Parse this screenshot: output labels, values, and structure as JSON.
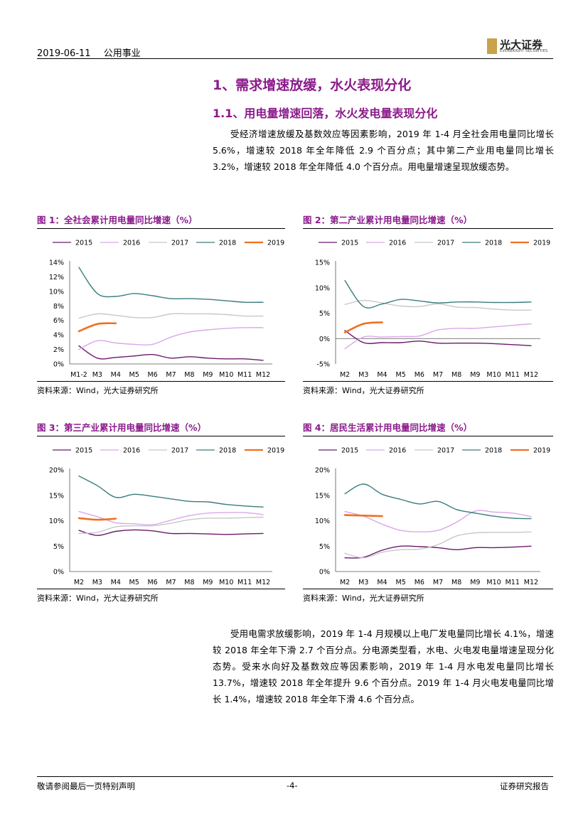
{
  "header": {
    "date": "2019-06-11",
    "sector": "公用事业"
  },
  "logo": {
    "cn": "光大证券",
    "en": "EVERBRIGHT SECURITIES"
  },
  "section": {
    "h1": "1、需求增速放缓，水火表现分化",
    "h2": "1.1、用电量增速回落，水火发电量表现分化"
  },
  "para1": "受经济增速放缓及基数效应等因素影响，2019 年 1-4 月全社会用电量同比增长 5.6%，增速较 2018 年全年降低 2.9 个百分点；其中第二产业用电量同比增长 3.2%，增速较 2018 年全年降低 4.0 个百分点。用电量增速呈现放缓态势。",
  "para2": "受用电需求放缓影响，2019 年 1-4 月规模以上电厂发电量同比增长 4.1%，增速较 2018 年全年下滑 2.7 个百分点。分电源类型看，水电、火电发电量增速呈现分化态势。受来水向好及基数效应等因素影响，2019 年 1-4 月水电发电量同比增长 13.7%，增速较 2018 年全年提升 9.6 个百分点。2019 年 1-4 月火电发电量同比增长 1.4%，增速较 2018 年全年下滑 4.6 个百分点。",
  "source_text": "资料来源：Wind，光大证券研究所",
  "footer": {
    "left": "敬请参阅最后一页特别声明",
    "center": "-4-",
    "right": "证券研究报告"
  },
  "colors": {
    "2015": "#6b1a6b",
    "2016": "#d9a8e8",
    "2017": "#c8c8c8",
    "2018": "#3a7d7d",
    "2019": "#f07020",
    "title": "#8b1a8b"
  },
  "chart_data": [
    {
      "id": "fig1",
      "type": "line",
      "title": "图 1：全社会累计用电量同比增速（%）",
      "categories": [
        "M1-2",
        "M3",
        "M4",
        "M5",
        "M6",
        "M7",
        "M8",
        "M9",
        "M10",
        "M11",
        "M12"
      ],
      "yticks": [
        "0%",
        "2%",
        "4%",
        "6%",
        "8%",
        "10%",
        "12%",
        "14%"
      ],
      "ylim": [
        0,
        14
      ],
      "series": [
        {
          "name": "2015",
          "values": [
            2.5,
            0.8,
            0.9,
            1.1,
            1.3,
            0.8,
            1.0,
            0.8,
            0.7,
            0.7,
            0.5
          ]
        },
        {
          "name": "2016",
          "values": [
            2.0,
            3.2,
            2.9,
            2.7,
            2.7,
            3.7,
            4.4,
            4.7,
            4.9,
            5.0,
            5.0
          ]
        },
        {
          "name": "2017",
          "values": [
            6.3,
            6.9,
            6.7,
            6.4,
            6.4,
            6.9,
            6.9,
            6.9,
            6.8,
            6.6,
            6.6
          ]
        },
        {
          "name": "2018",
          "values": [
            13.3,
            9.7,
            9.3,
            9.7,
            9.4,
            9.0,
            9.0,
            8.9,
            8.7,
            8.5,
            8.5
          ]
        },
        {
          "name": "2019",
          "values": [
            4.5,
            5.5,
            5.6,
            null,
            null,
            null,
            null,
            null,
            null,
            null,
            null
          ]
        }
      ]
    },
    {
      "id": "fig2",
      "type": "line",
      "title": "图 2：第二产业累计用电量同比增速（%）",
      "categories": [
        "M2",
        "M3",
        "M4",
        "M5",
        "M6",
        "M7",
        "M8",
        "M9",
        "M10",
        "M11",
        "M12"
      ],
      "yticks": [
        "-5%",
        "0%",
        "5%",
        "10%",
        "15%"
      ],
      "ylim": [
        -5,
        15
      ],
      "series": [
        {
          "name": "2015",
          "values": [
            1.6,
            -0.8,
            -0.8,
            -0.8,
            -0.5,
            -0.9,
            -0.9,
            -0.9,
            -1.0,
            -1.2,
            -1.4
          ]
        },
        {
          "name": "2016",
          "values": [
            -2.0,
            0.3,
            0.3,
            0.4,
            0.5,
            1.7,
            2.0,
            2.0,
            2.3,
            2.6,
            2.9
          ]
        },
        {
          "name": "2017",
          "values": [
            6.7,
            7.5,
            7.0,
            6.4,
            6.3,
            6.8,
            6.2,
            6.1,
            5.8,
            5.6,
            5.6
          ]
        },
        {
          "name": "2018",
          "values": [
            11.4,
            6.3,
            6.8,
            7.7,
            7.4,
            7.0,
            7.2,
            7.2,
            7.1,
            7.1,
            7.2
          ]
        },
        {
          "name": "2019",
          "values": [
            1.2,
            2.9,
            3.2,
            null,
            null,
            null,
            null,
            null,
            null,
            null,
            null
          ]
        }
      ]
    },
    {
      "id": "fig3",
      "type": "line",
      "title": "图 3：第三产业累计用电量同比增速（%）",
      "categories": [
        "M2",
        "M3",
        "M4",
        "M5",
        "M6",
        "M7",
        "M8",
        "M9",
        "M10",
        "M11",
        "M12"
      ],
      "yticks": [
        "0%",
        "5%",
        "10%",
        "15%",
        "20%"
      ],
      "ylim": [
        0,
        20
      ],
      "series": [
        {
          "name": "2015",
          "values": [
            8.1,
            7.1,
            7.9,
            8.2,
            8.0,
            7.5,
            7.5,
            7.4,
            7.3,
            7.4,
            7.5
          ]
        },
        {
          "name": "2016",
          "values": [
            11.8,
            10.8,
            9.6,
            9.4,
            9.2,
            10.1,
            11.0,
            11.5,
            11.6,
            11.6,
            11.2
          ]
        },
        {
          "name": "2017",
          "values": [
            7.5,
            7.7,
            8.8,
            9.0,
            9.0,
            9.5,
            10.2,
            10.5,
            10.5,
            10.6,
            10.7
          ]
        },
        {
          "name": "2018",
          "values": [
            18.8,
            16.9,
            14.6,
            15.2,
            14.8,
            14.3,
            13.8,
            13.7,
            13.2,
            12.9,
            12.7
          ]
        },
        {
          "name": "2019",
          "values": [
            10.5,
            10.2,
            10.4,
            null,
            null,
            null,
            null,
            null,
            null,
            null,
            null
          ]
        }
      ]
    },
    {
      "id": "fig4",
      "type": "line",
      "title": "图 4：居民生活累计用电量同比增速（%）",
      "categories": [
        "M2",
        "M3",
        "M4",
        "M5",
        "M6",
        "M7",
        "M8",
        "M9",
        "M10",
        "M11",
        "M12"
      ],
      "yticks": [
        "0%",
        "5%",
        "10%",
        "15%",
        "20%"
      ],
      "ylim": [
        0,
        20
      ],
      "series": [
        {
          "name": "2015",
          "values": [
            2.7,
            2.8,
            4.2,
            5.0,
            4.9,
            4.7,
            4.3,
            4.7,
            4.7,
            4.8,
            5.0
          ]
        },
        {
          "name": "2016",
          "values": [
            11.8,
            10.9,
            9.3,
            8.1,
            7.8,
            8.1,
            9.7,
            11.9,
            11.7,
            11.5,
            10.8
          ]
        },
        {
          "name": "2017",
          "values": [
            3.6,
            2.7,
            3.8,
            4.3,
            4.4,
            5.3,
            7.0,
            7.6,
            7.7,
            7.7,
            7.8
          ]
        },
        {
          "name": "2018",
          "values": [
            15.3,
            17.2,
            15.2,
            14.2,
            13.3,
            13.8,
            12.2,
            11.5,
            10.9,
            10.5,
            10.4
          ]
        },
        {
          "name": "2019",
          "values": [
            11.1,
            11.0,
            10.9,
            null,
            null,
            null,
            null,
            null,
            null,
            null,
            null
          ]
        }
      ]
    }
  ]
}
